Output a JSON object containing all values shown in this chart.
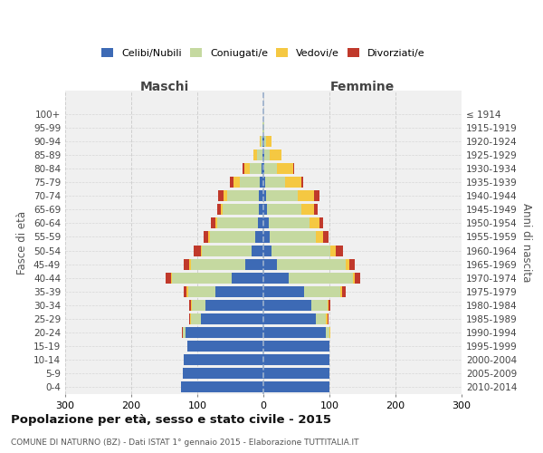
{
  "age_groups": [
    "0-4",
    "5-9",
    "10-14",
    "15-19",
    "20-24",
    "25-29",
    "30-34",
    "35-39",
    "40-44",
    "45-49",
    "50-54",
    "55-59",
    "60-64",
    "65-69",
    "70-74",
    "75-79",
    "80-84",
    "85-89",
    "90-94",
    "95-99",
    "100+"
  ],
  "birth_years": [
    "2010-2014",
    "2005-2009",
    "2000-2004",
    "1995-1999",
    "1990-1994",
    "1985-1989",
    "1980-1984",
    "1975-1979",
    "1970-1974",
    "1965-1969",
    "1960-1964",
    "1955-1959",
    "1950-1954",
    "1945-1949",
    "1940-1944",
    "1935-1939",
    "1930-1934",
    "1925-1929",
    "1920-1924",
    "1915-1919",
    "≤ 1914"
  ],
  "male": {
    "celibi": [
      125,
      122,
      120,
      115,
      118,
      95,
      88,
      72,
      48,
      28,
      18,
      13,
      8,
      7,
      7,
      5,
      3,
      2,
      1,
      0,
      0
    ],
    "coniugati": [
      0,
      0,
      0,
      0,
      4,
      14,
      20,
      42,
      90,
      82,
      75,
      68,
      62,
      55,
      48,
      30,
      18,
      8,
      3,
      1,
      0
    ],
    "vedovi": [
      0,
      0,
      0,
      0,
      0,
      2,
      2,
      2,
      2,
      2,
      2,
      2,
      2,
      3,
      5,
      10,
      8,
      5,
      2,
      0,
      0
    ],
    "divorziati": [
      0,
      0,
      0,
      0,
      1,
      2,
      2,
      4,
      8,
      8,
      10,
      8,
      8,
      5,
      8,
      5,
      2,
      0,
      0,
      0,
      0
    ]
  },
  "female": {
    "nubili": [
      100,
      100,
      100,
      100,
      95,
      80,
      72,
      62,
      38,
      20,
      12,
      10,
      8,
      5,
      4,
      3,
      2,
      2,
      1,
      0,
      0
    ],
    "coniugate": [
      0,
      0,
      0,
      0,
      5,
      15,
      25,
      55,
      98,
      105,
      90,
      70,
      62,
      52,
      48,
      30,
      18,
      8,
      3,
      1,
      0
    ],
    "vedove": [
      0,
      0,
      0,
      0,
      1,
      2,
      2,
      2,
      3,
      5,
      8,
      10,
      15,
      20,
      25,
      25,
      25,
      18,
      8,
      1,
      0
    ],
    "divorziate": [
      0,
      0,
      0,
      0,
      1,
      2,
      2,
      5,
      8,
      8,
      10,
      8,
      5,
      5,
      8,
      2,
      1,
      0,
      0,
      0,
      0
    ]
  },
  "colors": {
    "celibi": "#3d6ab5",
    "coniugati": "#c5d9a0",
    "vedovi": "#f5c842",
    "divorziati": "#c0392b"
  },
  "xlim": 300,
  "title": "Popolazione per età, sesso e stato civile - 2015",
  "subtitle": "COMUNE DI NATURNO (BZ) - Dati ISTAT 1° gennaio 2015 - Elaborazione TUTTITALIA.IT",
  "ylabel_left": "Fasce di età",
  "ylabel_right": "Anni di nascita",
  "xlabel_left": "Maschi",
  "xlabel_right": "Femmine",
  "background_color": "#ffffff",
  "plot_bg": "#f0f0f0",
  "grid_color": "#cccccc"
}
